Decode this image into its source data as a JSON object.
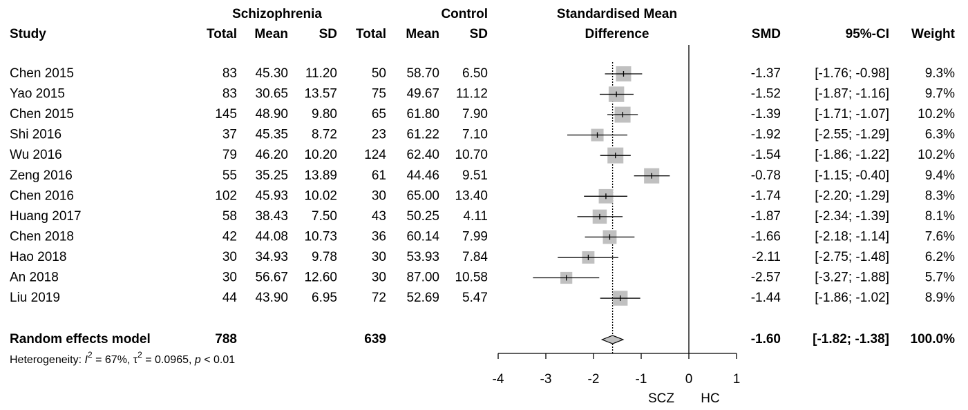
{
  "table": {
    "group_headers": [
      "Schizophrenia",
      "Control"
    ],
    "columns": [
      "Study",
      "Total",
      "Mean",
      "SD",
      "Total",
      "Mean",
      "SD"
    ],
    "rows": [
      [
        "Chen 2015",
        "83",
        "45.30",
        "11.20",
        "50",
        "58.70",
        "6.50"
      ],
      [
        "Yao 2015",
        "83",
        "30.65",
        "13.57",
        "75",
        "49.67",
        "11.12"
      ],
      [
        "Chen 2015",
        "145",
        "48.90",
        "9.80",
        "65",
        "61.80",
        "7.90"
      ],
      [
        "Shi 2016",
        "37",
        "45.35",
        "8.72",
        "23",
        "61.22",
        "7.10"
      ],
      [
        "Wu 2016",
        "79",
        "46.20",
        "10.20",
        "124",
        "62.40",
        "10.70"
      ],
      [
        "Zeng 2016",
        "55",
        "35.25",
        "13.89",
        "61",
        "44.46",
        "9.51"
      ],
      [
        "Chen 2016",
        "102",
        "45.93",
        "10.02",
        "30",
        "65.00",
        "13.40"
      ],
      [
        "Huang 2017",
        "58",
        "38.43",
        "7.50",
        "43",
        "50.25",
        "4.11"
      ],
      [
        "Chen 2018",
        "42",
        "44.08",
        "10.73",
        "36",
        "60.14",
        "7.99"
      ],
      [
        "Hao 2018",
        "30",
        "34.93",
        "9.78",
        "30",
        "53.93",
        "7.84"
      ],
      [
        "An 2018",
        "30",
        "56.67",
        "12.60",
        "30",
        "87.00",
        "10.58"
      ],
      [
        "Liu 2019",
        "44",
        "43.90",
        "6.95",
        "72",
        "52.69",
        "5.47"
      ]
    ],
    "pooled": [
      "Random effects model",
      "788",
      "639"
    ],
    "heterogeneity": [
      "Heterogeneity: ",
      "I",
      "2",
      " = 67%, τ",
      "2",
      " = 0.0965, ",
      "p",
      " < 0.01"
    ]
  },
  "chart_data": {
    "type": "forest",
    "title": [
      "Standardised Mean",
      "Difference"
    ],
    "columns": [
      "SMD",
      "95%-CI",
      "Weight"
    ],
    "smd": [
      -1.37,
      -1.52,
      -1.39,
      -1.92,
      -1.54,
      -0.78,
      -1.74,
      -1.87,
      -1.66,
      -2.11,
      -2.57,
      -1.44
    ],
    "smd_labels": [
      "-1.37",
      "-1.52",
      "-1.39",
      "-1.92",
      "-1.54",
      "-0.78",
      "-1.74",
      "-1.87",
      "-1.66",
      "-2.11",
      "-2.57",
      "-1.44"
    ],
    "ci_lower": [
      -1.76,
      -1.87,
      -1.71,
      -2.55,
      -1.86,
      -1.15,
      -2.2,
      -2.34,
      -2.18,
      -2.75,
      -3.27,
      -1.86
    ],
    "ci_upper": [
      -0.98,
      -1.16,
      -1.07,
      -1.29,
      -1.22,
      -0.4,
      -1.29,
      -1.39,
      -1.14,
      -1.48,
      -1.88,
      -1.02
    ],
    "ci_labels": [
      "[-1.76; -0.98]",
      "[-1.87; -1.16]",
      "[-1.71; -1.07]",
      "[-2.55; -1.29]",
      "[-1.86; -1.22]",
      "[-1.15; -0.40]",
      "[-2.20; -1.29]",
      "[-2.34; -1.39]",
      "[-2.18; -1.14]",
      "[-2.75; -1.48]",
      "[-3.27; -1.88]",
      "[-1.86; -1.02]"
    ],
    "weights": [
      9.3,
      9.7,
      10.2,
      6.3,
      10.2,
      9.4,
      8.3,
      8.1,
      7.6,
      6.2,
      5.7,
      8.9
    ],
    "weight_labels": [
      "9.3%",
      "9.7%",
      "10.2%",
      "6.3%",
      "10.2%",
      "9.4%",
      "8.3%",
      "8.1%",
      "7.6%",
      "6.2%",
      "5.7%",
      "8.9%"
    ],
    "pooled": {
      "smd": -1.6,
      "smd_label": "-1.60",
      "ci_lower": -1.82,
      "ci_upper": -1.38,
      "ci_label": "[-1.82; -1.38]",
      "weight": 100.0,
      "weight_label": "100.0%"
    },
    "xlim": [
      -4,
      1
    ],
    "xticks": [
      -4,
      -3,
      -2,
      -1,
      0,
      1
    ],
    "x_labels": [
      "SCZ",
      "HC"
    ],
    "box_color": "#c0c0c0"
  }
}
